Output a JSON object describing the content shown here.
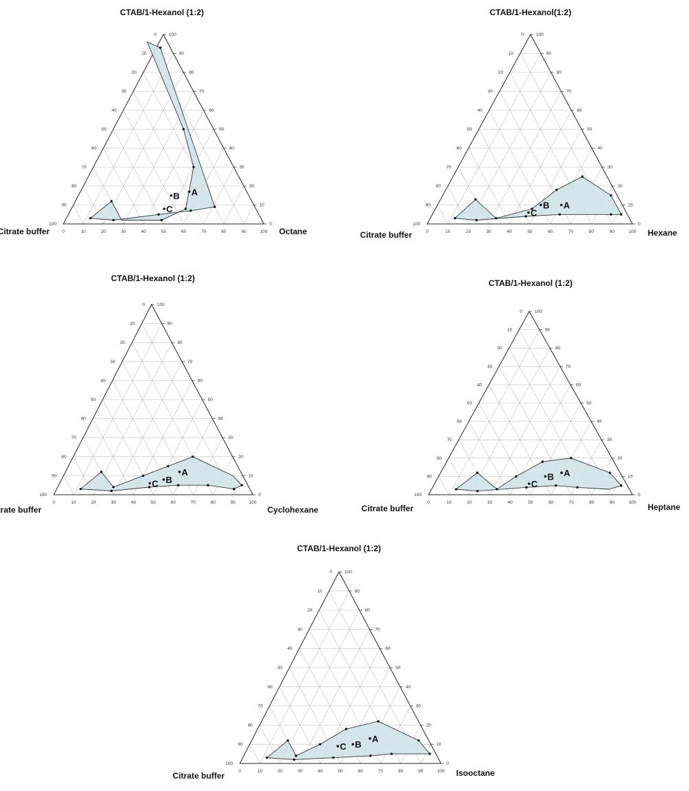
{
  "chart_data": [
    {
      "type": "ternary",
      "title": "CTAB/1-Hexanol (1:2)",
      "vertices": {
        "top": "",
        "left": "Citrate buffer",
        "right": "Octane"
      },
      "ticks": [
        "0",
        "10",
        "20",
        "30",
        "40",
        "50",
        "60",
        "70",
        "80",
        "90",
        "100"
      ],
      "region_boundary": [
        [
          12,
          70,
          18
        ],
        [
          3,
          85,
          12
        ],
        [
          2,
          74,
          24
        ],
        [
          5,
          50,
          45
        ],
        [
          7,
          33,
          60
        ],
        [
          9,
          20,
          71
        ],
        [
          93,
          5,
          2
        ],
        [
          96,
          10,
          -6
        ],
        [
          50,
          15,
          35
        ],
        [
          30,
          20,
          50
        ],
        [
          8,
          35,
          57
        ],
        [
          2,
          50,
          48
        ],
        [
          2,
          70,
          28
        ]
      ],
      "region_points": [
        [
          12,
          70,
          18
        ],
        [
          3,
          85,
          12
        ],
        [
          2,
          74,
          24
        ],
        [
          5,
          50,
          45
        ],
        [
          7,
          33,
          60
        ],
        [
          9,
          20,
          71
        ],
        [
          93,
          5,
          2
        ],
        [
          50,
          15,
          35
        ],
        [
          30,
          20,
          50
        ],
        [
          8,
          35,
          57
        ],
        [
          2,
          50,
          48
        ]
      ],
      "points": [
        {
          "label": "A",
          "comp": [
            17,
            27,
            56
          ]
        },
        {
          "label": "B",
          "comp": [
            15,
            37,
            48
          ]
        },
        {
          "label": "C",
          "comp": [
            8,
            44,
            48
          ]
        }
      ]
    },
    {
      "type": "ternary",
      "title": "CTAB/1-Hexanol(1:2)",
      "vertices": {
        "top": "",
        "left": "Citrate buffer",
        "right": "Hexane"
      },
      "ticks": [
        "0",
        "10",
        "20",
        "30",
        "40",
        "50",
        "60",
        "70",
        "80",
        "90",
        "100"
      ],
      "region_boundary": [
        [
          13,
          70,
          17
        ],
        [
          3,
          85,
          12
        ],
        [
          2,
          75,
          23
        ],
        [
          4,
          50,
          46
        ],
        [
          5,
          33,
          62
        ],
        [
          5,
          20,
          75
        ],
        [
          5,
          8,
          87
        ],
        [
          5,
          3,
          92
        ],
        [
          15,
          3,
          82
        ],
        [
          25,
          12,
          63
        ],
        [
          18,
          28,
          54
        ],
        [
          8,
          45,
          47
        ],
        [
          3,
          65,
          32
        ]
      ],
      "region_points": [
        [
          13,
          70,
          17
        ],
        [
          3,
          85,
          12
        ],
        [
          2,
          75,
          23
        ],
        [
          4,
          50,
          46
        ],
        [
          5,
          33,
          62
        ],
        [
          5,
          8,
          87
        ],
        [
          5,
          3,
          92
        ],
        [
          15,
          3,
          82
        ],
        [
          25,
          12,
          63
        ],
        [
          18,
          28,
          54
        ],
        [
          8,
          45,
          47
        ],
        [
          3,
          65,
          32
        ]
      ],
      "points": [
        {
          "label": "A",
          "comp": [
            10,
            28,
            62
          ]
        },
        {
          "label": "B",
          "comp": [
            10,
            38,
            52
          ]
        },
        {
          "label": "C",
          "comp": [
            6,
            46,
            48
          ]
        }
      ]
    },
    {
      "type": "ternary",
      "title": "CTAB/1-Hexanol (1:2)",
      "vertices": {
        "top": "",
        "left": "Citrate buffer",
        "right": "Cyclohexane"
      },
      "ticks": [
        "0",
        "10",
        "20",
        "30",
        "40",
        "50",
        "60",
        "70",
        "80",
        "90",
        "100"
      ],
      "region_boundary": [
        [
          12,
          70,
          18
        ],
        [
          3,
          85,
          12
        ],
        [
          2,
          70,
          28
        ],
        [
          4,
          50,
          46
        ],
        [
          5,
          35,
          60
        ],
        [
          5,
          20,
          75
        ],
        [
          3,
          8,
          89
        ],
        [
          5,
          3,
          92
        ],
        [
          10,
          5,
          85
        ],
        [
          20,
          20,
          60
        ],
        [
          15,
          35,
          50
        ],
        [
          10,
          50,
          40
        ],
        [
          4,
          68,
          28
        ]
      ],
      "region_points": [
        [
          12,
          70,
          18
        ],
        [
          3,
          85,
          12
        ],
        [
          2,
          70,
          28
        ],
        [
          4,
          50,
          46
        ],
        [
          5,
          35,
          60
        ],
        [
          5,
          20,
          75
        ],
        [
          3,
          8,
          89
        ],
        [
          5,
          3,
          92
        ],
        [
          20,
          20,
          60
        ],
        [
          15,
          35,
          50
        ],
        [
          10,
          50,
          40
        ],
        [
          4,
          68,
          28
        ]
      ],
      "points": [
        {
          "label": "A",
          "comp": [
            12,
            29,
            59
          ]
        },
        {
          "label": "B",
          "comp": [
            8,
            39,
            53
          ]
        },
        {
          "label": "C",
          "comp": [
            6,
            47,
            47
          ]
        }
      ]
    },
    {
      "type": "ternary",
      "title": "CTAB/1-Hexanol (1:2)",
      "vertices": {
        "top": "",
        "left": "Citrate buffer",
        "right": "Heptane"
      },
      "ticks": [
        "0",
        "10",
        "20",
        "30",
        "40",
        "50",
        "60",
        "70",
        "80",
        "90",
        "100"
      ],
      "region_boundary": [
        [
          12,
          70,
          18
        ],
        [
          3,
          85,
          12
        ],
        [
          2,
          75,
          23
        ],
        [
          4,
          50,
          46
        ],
        [
          5,
          35,
          60
        ],
        [
          4,
          25,
          71
        ],
        [
          3,
          10,
          87
        ],
        [
          5,
          3,
          92
        ],
        [
          12,
          5,
          83
        ],
        [
          20,
          20,
          60
        ],
        [
          18,
          35,
          47
        ],
        [
          10,
          52,
          38
        ],
        [
          3,
          65,
          32
        ]
      ],
      "region_points": [
        [
          12,
          70,
          18
        ],
        [
          3,
          85,
          12
        ],
        [
          2,
          75,
          23
        ],
        [
          4,
          50,
          46
        ],
        [
          5,
          35,
          60
        ],
        [
          4,
          25,
          71
        ],
        [
          5,
          3,
          92
        ],
        [
          12,
          5,
          83
        ],
        [
          20,
          20,
          60
        ],
        [
          18,
          35,
          47
        ],
        [
          10,
          52,
          38
        ],
        [
          3,
          65,
          32
        ]
      ],
      "points": [
        {
          "label": "A",
          "comp": [
            12,
            27,
            61
          ]
        },
        {
          "label": "B",
          "comp": [
            10,
            36,
            54
          ]
        },
        {
          "label": "C",
          "comp": [
            6,
            46,
            48
          ]
        }
      ]
    },
    {
      "type": "ternary",
      "title": "CTAB/1-Hexanol (1:2)",
      "vertices": {
        "top": "",
        "left": "Citrate buffer",
        "right": "Isooctane"
      },
      "ticks": [
        "0",
        "10",
        "20",
        "30",
        "40",
        "50",
        "60",
        "70",
        "80",
        "90",
        "100"
      ],
      "region_boundary": [
        [
          12,
          70,
          18
        ],
        [
          3,
          85,
          12
        ],
        [
          2,
          72,
          26
        ],
        [
          3,
          52,
          45
        ],
        [
          4,
          33,
          63
        ],
        [
          5,
          22,
          73
        ],
        [
          5,
          10,
          85
        ],
        [
          5,
          3,
          92
        ],
        [
          12,
          5,
          83
        ],
        [
          22,
          20,
          58
        ],
        [
          18,
          38,
          44
        ],
        [
          10,
          55,
          35
        ],
        [
          4,
          70,
          26
        ]
      ],
      "region_points": [
        [
          12,
          70,
          18
        ],
        [
          3,
          85,
          12
        ],
        [
          2,
          72,
          26
        ],
        [
          3,
          52,
          45
        ],
        [
          4,
          33,
          63
        ],
        [
          5,
          22,
          73
        ],
        [
          5,
          3,
          92
        ],
        [
          12,
          5,
          83
        ],
        [
          22,
          20,
          58
        ],
        [
          18,
          38,
          44
        ],
        [
          10,
          55,
          35
        ],
        [
          4,
          70,
          26
        ]
      ],
      "points": [
        {
          "label": "A",
          "comp": [
            13,
            27,
            60
          ]
        },
        {
          "label": "B",
          "comp": [
            10,
            37,
            53
          ]
        },
        {
          "label": "C",
          "comp": [
            9,
            45,
            46
          ]
        }
      ]
    }
  ]
}
